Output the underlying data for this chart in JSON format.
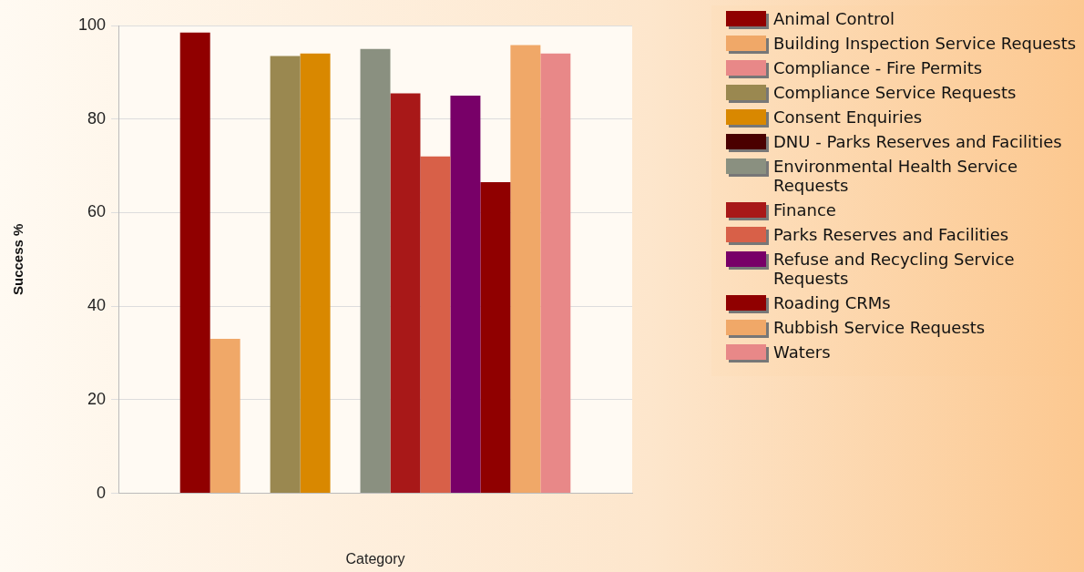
{
  "chart_data": {
    "type": "bar",
    "xlabel": "Category",
    "ylabel": "Success %",
    "categories": [
      null
    ],
    "ylim": [
      0,
      100
    ],
    "yticks": [
      0,
      20,
      40,
      60,
      80,
      100
    ],
    "grid": "y",
    "legend": "top right",
    "series": [
      {
        "name": "Animal Control",
        "color": "#900000",
        "values": [
          98.5
        ]
      },
      {
        "name": "Building Inspection Service Requests",
        "color": "#f0a868",
        "values": [
          33
        ]
      },
      {
        "name": "Compliance - Fire Permits",
        "color": "#e88888",
        "values": [
          null
        ]
      },
      {
        "name": "Compliance Service Requests",
        "color": "#9a8850",
        "values": [
          93.5
        ]
      },
      {
        "name": "Consent Enquiries",
        "color": "#d98800",
        "values": [
          94
        ]
      },
      {
        "name": "DNU - Parks Reserves and Facilities",
        "color": "#4a0000",
        "values": [
          null
        ]
      },
      {
        "name": "Environmental Health Service Requests",
        "color": "#8a9080",
        "values": [
          95
        ]
      },
      {
        "name": "Finance",
        "color": "#a81818",
        "values": [
          85.5
        ]
      },
      {
        "name": "Parks Reserves and Facilities",
        "color": "#d86048",
        "values": [
          72
        ]
      },
      {
        "name": "Refuse and Recycling Service Requests",
        "color": "#780068",
        "values": [
          85
        ]
      },
      {
        "name": "Roading CRMs",
        "color": "#900000",
        "values": [
          66.5
        ]
      },
      {
        "name": "Rubbish Service Requests",
        "color": "#f0a868",
        "values": [
          95.8
        ]
      },
      {
        "name": "Waters",
        "color": "#e88888",
        "values": [
          94
        ]
      }
    ]
  }
}
